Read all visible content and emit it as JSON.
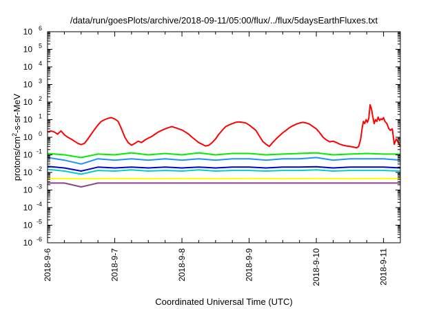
{
  "chart_data": {
    "type": "line",
    "title": "/data/run/goesPlots/archive/2018-09-11/05:00/flux/../flux/5daysEarthFluxes.txt",
    "xlabel": "Coordinated Universal Time (UTC)",
    "ylabel_prefix": "protons/cm",
    "ylabel_sup": "2",
    "ylabel_suffix": "-s-sr-MeV",
    "y_scale": "log",
    "ylim_exp": [
      -6,
      6
    ],
    "ytick_base": "10",
    "yticks_exp": [
      -6,
      -5,
      -4,
      -3,
      -2,
      -1,
      0,
      1,
      2,
      3,
      4,
      5,
      6
    ],
    "xlim_days": [
      0,
      5.25
    ],
    "xticks": [
      {
        "day": 0,
        "label": "2018-9-6"
      },
      {
        "day": 1,
        "label": "2018-9-7"
      },
      {
        "day": 2,
        "label": "2018-9-8"
      },
      {
        "day": 3,
        "label": "2018-9-9"
      },
      {
        "day": 4,
        "label": "2018-9-10"
      },
      {
        "day": 5,
        "label": "2018-9-11"
      }
    ],
    "grid": false,
    "legend": "none",
    "series": [
      {
        "color": "#ff0000",
        "points": [
          [
            0.0,
            2.0
          ],
          [
            0.05,
            2.3
          ],
          [
            0.1,
            2.0
          ],
          [
            0.15,
            1.5
          ],
          [
            0.2,
            2.3
          ],
          [
            0.25,
            1.4
          ],
          [
            0.3,
            1.0
          ],
          [
            0.35,
            0.8
          ],
          [
            0.4,
            0.6
          ],
          [
            0.45,
            0.45
          ],
          [
            0.5,
            0.38
          ],
          [
            0.55,
            0.45
          ],
          [
            0.6,
            0.8
          ],
          [
            0.65,
            1.5
          ],
          [
            0.7,
            2.8
          ],
          [
            0.75,
            5.0
          ],
          [
            0.8,
            8.0
          ],
          [
            0.85,
            10.0
          ],
          [
            0.9,
            12.0
          ],
          [
            0.95,
            13.0
          ],
          [
            1.0,
            11.0
          ],
          [
            1.05,
            8.0
          ],
          [
            1.1,
            3.0
          ],
          [
            1.15,
            1.0
          ],
          [
            1.2,
            0.5
          ],
          [
            1.25,
            0.35
          ],
          [
            1.3,
            0.45
          ],
          [
            1.35,
            0.6
          ],
          [
            1.4,
            0.5
          ],
          [
            1.45,
            0.7
          ],
          [
            1.5,
            0.9
          ],
          [
            1.55,
            1.1
          ],
          [
            1.6,
            1.5
          ],
          [
            1.65,
            2.0
          ],
          [
            1.7,
            2.5
          ],
          [
            1.75,
            3.0
          ],
          [
            1.8,
            3.5
          ],
          [
            1.85,
            4.0
          ],
          [
            1.9,
            3.5
          ],
          [
            1.95,
            3.0
          ],
          [
            2.0,
            2.6
          ],
          [
            2.05,
            2.0
          ],
          [
            2.1,
            1.5
          ],
          [
            2.15,
            1.0
          ],
          [
            2.2,
            0.7
          ],
          [
            2.25,
            0.5
          ],
          [
            2.3,
            0.4
          ],
          [
            2.35,
            0.32
          ],
          [
            2.4,
            0.35
          ],
          [
            2.45,
            0.5
          ],
          [
            2.5,
            0.8
          ],
          [
            2.55,
            1.5
          ],
          [
            2.6,
            2.5
          ],
          [
            2.65,
            4.0
          ],
          [
            2.7,
            5.0
          ],
          [
            2.75,
            6.0
          ],
          [
            2.8,
            7.0
          ],
          [
            2.85,
            7.5
          ],
          [
            2.9,
            7.0
          ],
          [
            2.95,
            6.5
          ],
          [
            3.0,
            5.0
          ],
          [
            3.05,
            3.5
          ],
          [
            3.1,
            2.5
          ],
          [
            3.15,
            1.2
          ],
          [
            3.2,
            0.6
          ],
          [
            3.25,
            0.4
          ],
          [
            3.3,
            0.3
          ],
          [
            3.35,
            0.5
          ],
          [
            3.4,
            0.8
          ],
          [
            3.45,
            1.2
          ],
          [
            3.5,
            1.8
          ],
          [
            3.55,
            2.5
          ],
          [
            3.6,
            3.5
          ],
          [
            3.65,
            4.5
          ],
          [
            3.7,
            5.5
          ],
          [
            3.75,
            6.5
          ],
          [
            3.8,
            7.0
          ],
          [
            3.85,
            6.5
          ],
          [
            3.9,
            5.5
          ],
          [
            3.95,
            4.0
          ],
          [
            4.0,
            3.0
          ],
          [
            4.05,
            1.8
          ],
          [
            4.1,
            1.0
          ],
          [
            4.15,
            0.7
          ],
          [
            4.2,
            0.55
          ],
          [
            4.25,
            0.6
          ],
          [
            4.3,
            0.5
          ],
          [
            4.35,
            0.4
          ],
          [
            4.4,
            0.35
          ],
          [
            4.45,
            0.32
          ],
          [
            4.5,
            0.3
          ],
          [
            4.55,
            0.28
          ],
          [
            4.6,
            0.25
          ],
          [
            4.63,
            0.3
          ],
          [
            4.66,
            0.8
          ],
          [
            4.68,
            3.0
          ],
          [
            4.7,
            8.0
          ],
          [
            4.72,
            6.0
          ],
          [
            4.74,
            10.0
          ],
          [
            4.76,
            7.0
          ],
          [
            4.78,
            12.0
          ],
          [
            4.8,
            70.0
          ],
          [
            4.82,
            40.0
          ],
          [
            4.84,
            15.0
          ],
          [
            4.86,
            6.0
          ],
          [
            4.88,
            10.0
          ],
          [
            4.9,
            8.0
          ],
          [
            4.92,
            14.0
          ],
          [
            4.94,
            9.0
          ],
          [
            4.96,
            11.0
          ],
          [
            4.98,
            10.0
          ],
          [
            5.0,
            13.0
          ],
          [
            5.02,
            8.0
          ],
          [
            5.05,
            6.0
          ],
          [
            5.08,
            3.0
          ],
          [
            5.1,
            2.5
          ],
          [
            5.13,
            3.0
          ],
          [
            5.16,
            0.4
          ],
          [
            5.19,
            0.8
          ],
          [
            5.22,
            0.5
          ],
          [
            5.25,
            0.3
          ]
        ]
      },
      {
        "color": "#00ee00",
        "points": [
          [
            0.0,
            0.12
          ],
          [
            0.25,
            0.1
          ],
          [
            0.5,
            0.07
          ],
          [
            0.75,
            0.11
          ],
          [
            1.0,
            0.1
          ],
          [
            1.25,
            0.13
          ],
          [
            1.5,
            0.1
          ],
          [
            1.75,
            0.12
          ],
          [
            2.0,
            0.1
          ],
          [
            2.25,
            0.13
          ],
          [
            2.5,
            0.1
          ],
          [
            2.75,
            0.12
          ],
          [
            3.0,
            0.12
          ],
          [
            3.25,
            0.1
          ],
          [
            3.5,
            0.11
          ],
          [
            3.75,
            0.12
          ],
          [
            4.0,
            0.13
          ],
          [
            4.25,
            0.1
          ],
          [
            4.5,
            0.11
          ],
          [
            4.75,
            0.12
          ],
          [
            5.0,
            0.11
          ],
          [
            5.25,
            0.11
          ]
        ]
      },
      {
        "color": "#1e90ff",
        "points": [
          [
            0.0,
            0.07
          ],
          [
            0.25,
            0.05
          ],
          [
            0.5,
            0.03
          ],
          [
            0.75,
            0.06
          ],
          [
            1.0,
            0.05
          ],
          [
            1.25,
            0.06
          ],
          [
            1.5,
            0.05
          ],
          [
            1.75,
            0.06
          ],
          [
            2.0,
            0.05
          ],
          [
            2.25,
            0.06
          ],
          [
            2.5,
            0.05
          ],
          [
            2.75,
            0.06
          ],
          [
            3.0,
            0.06
          ],
          [
            3.25,
            0.05
          ],
          [
            3.5,
            0.06
          ],
          [
            3.75,
            0.06
          ],
          [
            4.0,
            0.07
          ],
          [
            4.25,
            0.05
          ],
          [
            4.5,
            0.06
          ],
          [
            4.75,
            0.06
          ],
          [
            5.0,
            0.06
          ],
          [
            5.25,
            0.05
          ]
        ]
      },
      {
        "color": "#00cccc",
        "points": [
          [
            0.0,
            0.015
          ],
          [
            0.25,
            0.012
          ],
          [
            0.5,
            0.008
          ],
          [
            0.75,
            0.013
          ],
          [
            1.0,
            0.012
          ],
          [
            1.25,
            0.014
          ],
          [
            1.5,
            0.012
          ],
          [
            1.75,
            0.013
          ],
          [
            2.0,
            0.012
          ],
          [
            2.25,
            0.014
          ],
          [
            2.5,
            0.012
          ],
          [
            2.75,
            0.013
          ],
          [
            3.0,
            0.013
          ],
          [
            3.25,
            0.012
          ],
          [
            3.5,
            0.013
          ],
          [
            3.75,
            0.013
          ],
          [
            4.0,
            0.014
          ],
          [
            4.25,
            0.012
          ],
          [
            4.5,
            0.013
          ],
          [
            4.75,
            0.013
          ],
          [
            5.0,
            0.013
          ],
          [
            5.25,
            0.012
          ]
        ]
      },
      {
        "color": "#0000cc",
        "points": [
          [
            0.0,
            0.022
          ],
          [
            0.25,
            0.018
          ],
          [
            0.5,
            0.012
          ],
          [
            0.75,
            0.02
          ],
          [
            1.0,
            0.018
          ],
          [
            1.25,
            0.02
          ],
          [
            1.5,
            0.018
          ],
          [
            1.75,
            0.02
          ],
          [
            2.0,
            0.018
          ],
          [
            2.25,
            0.02
          ],
          [
            2.5,
            0.018
          ],
          [
            2.75,
            0.02
          ],
          [
            3.0,
            0.02
          ],
          [
            3.25,
            0.018
          ],
          [
            3.5,
            0.02
          ],
          [
            3.75,
            0.02
          ],
          [
            4.0,
            0.021
          ],
          [
            4.25,
            0.018
          ],
          [
            4.5,
            0.02
          ],
          [
            4.75,
            0.02
          ],
          [
            5.0,
            0.02
          ],
          [
            5.25,
            0.018
          ]
        ]
      },
      {
        "color": "#ffff00",
        "points": [
          [
            0.0,
            0.0045
          ],
          [
            0.5,
            0.0044
          ],
          [
            1.0,
            0.0045
          ],
          [
            1.5,
            0.0044
          ],
          [
            2.0,
            0.0045
          ],
          [
            2.5,
            0.0044
          ],
          [
            3.0,
            0.0045
          ],
          [
            3.5,
            0.0044
          ],
          [
            4.0,
            0.0045
          ],
          [
            4.5,
            0.0044
          ],
          [
            5.0,
            0.0045
          ],
          [
            5.25,
            0.0044
          ]
        ]
      },
      {
        "color": "#884488",
        "points": [
          [
            0.0,
            0.0025
          ],
          [
            0.25,
            0.0025
          ],
          [
            0.5,
            0.0015
          ],
          [
            0.75,
            0.0025
          ],
          [
            1.0,
            0.0025
          ],
          [
            1.25,
            0.0025
          ],
          [
            1.5,
            0.0025
          ],
          [
            1.75,
            0.0025
          ],
          [
            2.0,
            0.0025
          ],
          [
            2.25,
            0.0025
          ],
          [
            2.5,
            0.0025
          ],
          [
            2.75,
            0.0025
          ],
          [
            3.0,
            0.0025
          ],
          [
            3.25,
            0.0025
          ],
          [
            3.5,
            0.0025
          ],
          [
            3.75,
            0.0025
          ],
          [
            4.0,
            0.0025
          ],
          [
            4.25,
            0.0025
          ],
          [
            4.5,
            0.0025
          ],
          [
            4.75,
            0.0025
          ],
          [
            5.0,
            0.0025
          ],
          [
            5.25,
            0.0025
          ]
        ]
      }
    ]
  }
}
